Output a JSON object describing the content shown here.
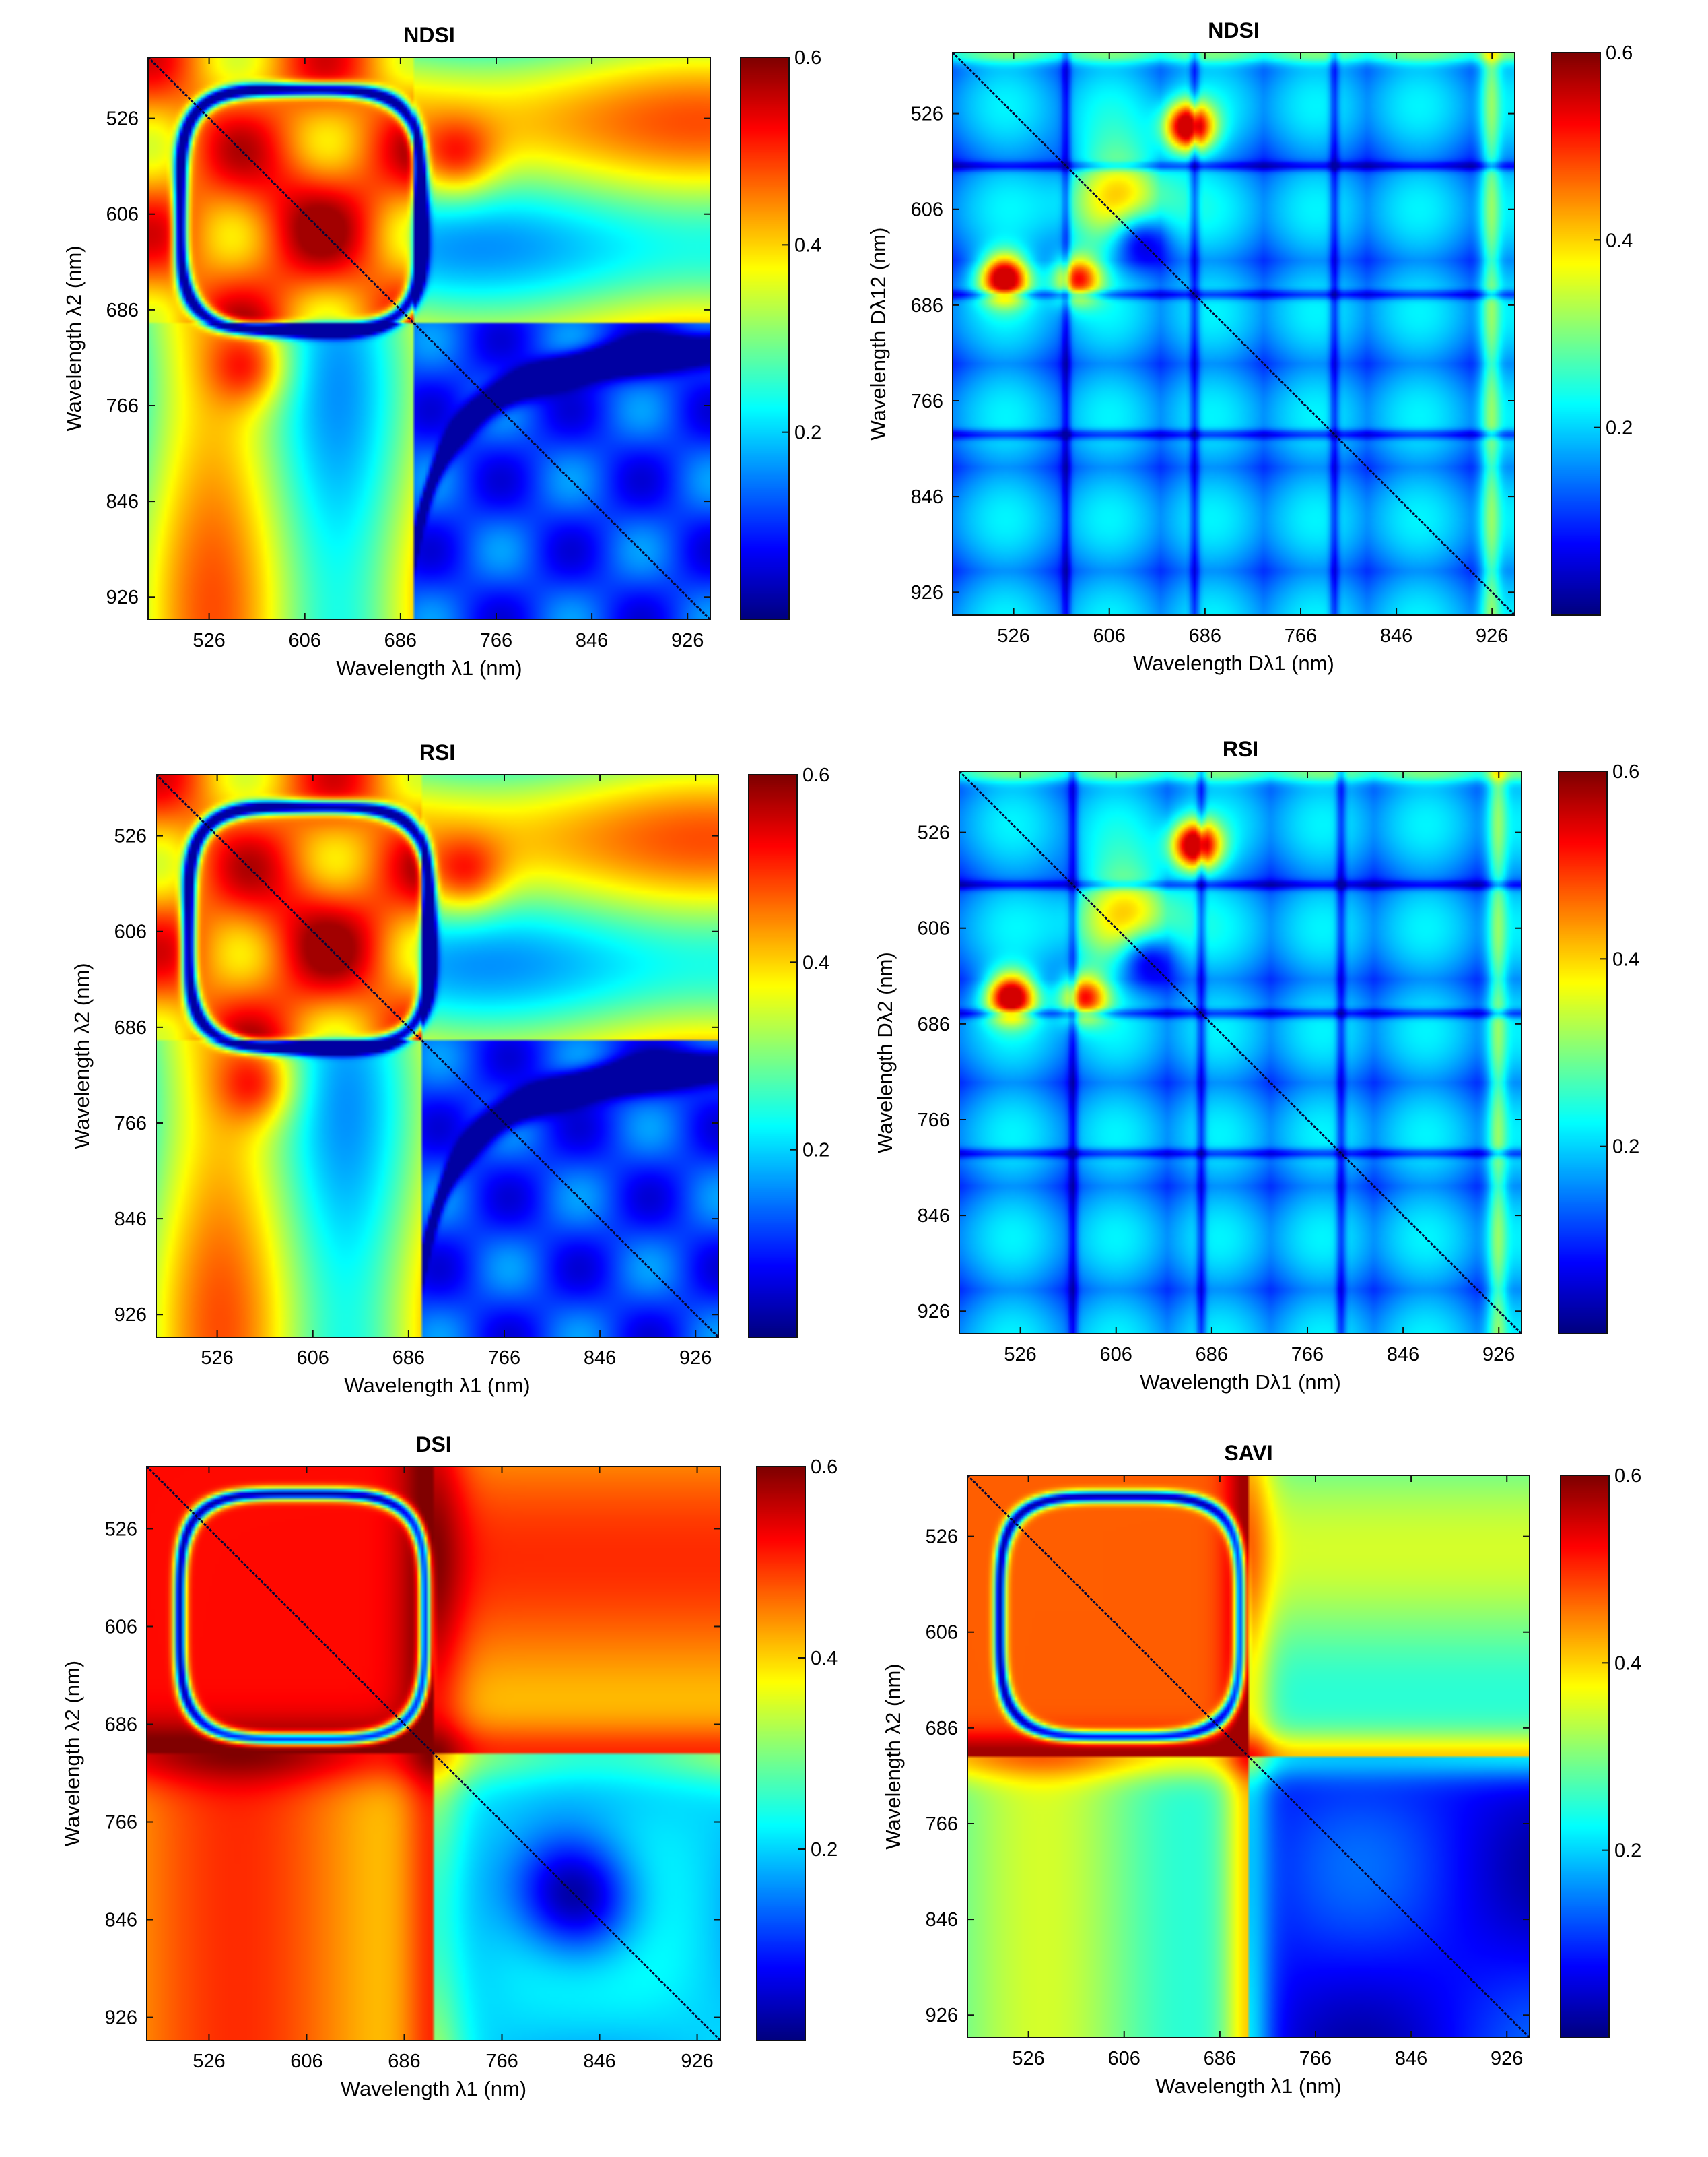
{
  "figure": {
    "colors": {
      "axis": "#111111",
      "diagonal": "#050535",
      "background": "#ffffff"
    },
    "colormap": "jet"
  },
  "chart_data": [
    {
      "type": "heatmap",
      "title": "NDSI",
      "xlabel": "Wavelength λ1 (nm)",
      "ylabel": "Wavelength λ2 (nm)",
      "xticks": [
        "526",
        "606",
        "686",
        "766",
        "846",
        "926"
      ],
      "yticks": [
        "526",
        "606",
        "686",
        "766",
        "846",
        "926"
      ],
      "xlim": [
        475,
        945
      ],
      "ylim": [
        475,
        945
      ],
      "colorbar": {
        "min": 0,
        "max": 0.6,
        "ticks": [
          "0.6",
          "0.4",
          "0.2"
        ]
      },
      "pattern": "original",
      "visible_min": 0.02,
      "visible_max": 0.58
    },
    {
      "type": "heatmap",
      "title": "NDSI",
      "xlabel": "Wavelength Dλ1 (nm)",
      "ylabel": "Wavelength Dλ12 (nm)",
      "xticks": [
        "526",
        "606",
        "686",
        "766",
        "846",
        "926"
      ],
      "yticks": [
        "526",
        "606",
        "686",
        "766",
        "846",
        "926"
      ],
      "xlim": [
        475,
        945
      ],
      "ylim": [
        475,
        945
      ],
      "colorbar": {
        "min": 0,
        "max": 0.6,
        "ticks": [
          "0.6",
          "0.4",
          "0.2"
        ]
      },
      "pattern": "derivative",
      "visible_min": 0.02,
      "visible_max": 0.55
    },
    {
      "type": "heatmap",
      "title": "RSI",
      "xlabel": "Wavelength λ1 (nm)",
      "ylabel": "Wavelength λ2 (nm)",
      "xticks": [
        "526",
        "606",
        "686",
        "766",
        "846",
        "926"
      ],
      "yticks": [
        "526",
        "606",
        "686",
        "766",
        "846",
        "926"
      ],
      "xlim": [
        475,
        945
      ],
      "ylim": [
        475,
        945
      ],
      "colorbar": {
        "min": 0,
        "max": 0.6,
        "ticks": [
          "0.6",
          "0.4",
          "0.2"
        ]
      },
      "pattern": "original",
      "visible_min": 0.02,
      "visible_max": 0.58
    },
    {
      "type": "heatmap",
      "title": "RSI",
      "xlabel": "Wavelength Dλ1 (nm)",
      "ylabel": "Wavelength Dλ2 (nm)",
      "xticks": [
        "526",
        "606",
        "686",
        "766",
        "846",
        "926"
      ],
      "yticks": [
        "526",
        "606",
        "686",
        "766",
        "846",
        "926"
      ],
      "xlim": [
        475,
        945
      ],
      "ylim": [
        475,
        945
      ],
      "colorbar": {
        "min": 0,
        "max": 0.6,
        "ticks": [
          "0.6",
          "0.4",
          "0.2"
        ]
      },
      "pattern": "derivative",
      "visible_min": 0.02,
      "visible_max": 0.55
    },
    {
      "type": "heatmap",
      "title": "DSI",
      "xlabel": "Wavelength λ1 (nm)",
      "ylabel": "Wavelength λ2 (nm)",
      "xticks": [
        "526",
        "606",
        "686",
        "766",
        "846",
        "926"
      ],
      "yticks": [
        "526",
        "606",
        "686",
        "766",
        "846",
        "926"
      ],
      "xlim": [
        475,
        945
      ],
      "ylim": [
        475,
        945
      ],
      "colorbar": {
        "min": 0,
        "max": 0.6,
        "ticks": [
          "0.6",
          "0.4",
          "0.2"
        ]
      },
      "pattern": "dsi",
      "visible_min": 0.02,
      "visible_max": 0.6
    },
    {
      "type": "heatmap",
      "title": "SAVI",
      "xlabel": "Wavelength λ1 (nm)",
      "ylabel": "Wavelength λ2 (nm)",
      "xticks": [
        "526",
        "606",
        "686",
        "766",
        "846",
        "926"
      ],
      "yticks": [
        "526",
        "606",
        "686",
        "766",
        "846",
        "926"
      ],
      "xlim": [
        475,
        945
      ],
      "ylim": [
        475,
        945
      ],
      "colorbar": {
        "min": 0,
        "max": 0.6,
        "ticks": [
          "0.6",
          "0.4",
          "0.2"
        ]
      },
      "pattern": "savi",
      "visible_min": 0.02,
      "visible_max": 0.58
    }
  ]
}
